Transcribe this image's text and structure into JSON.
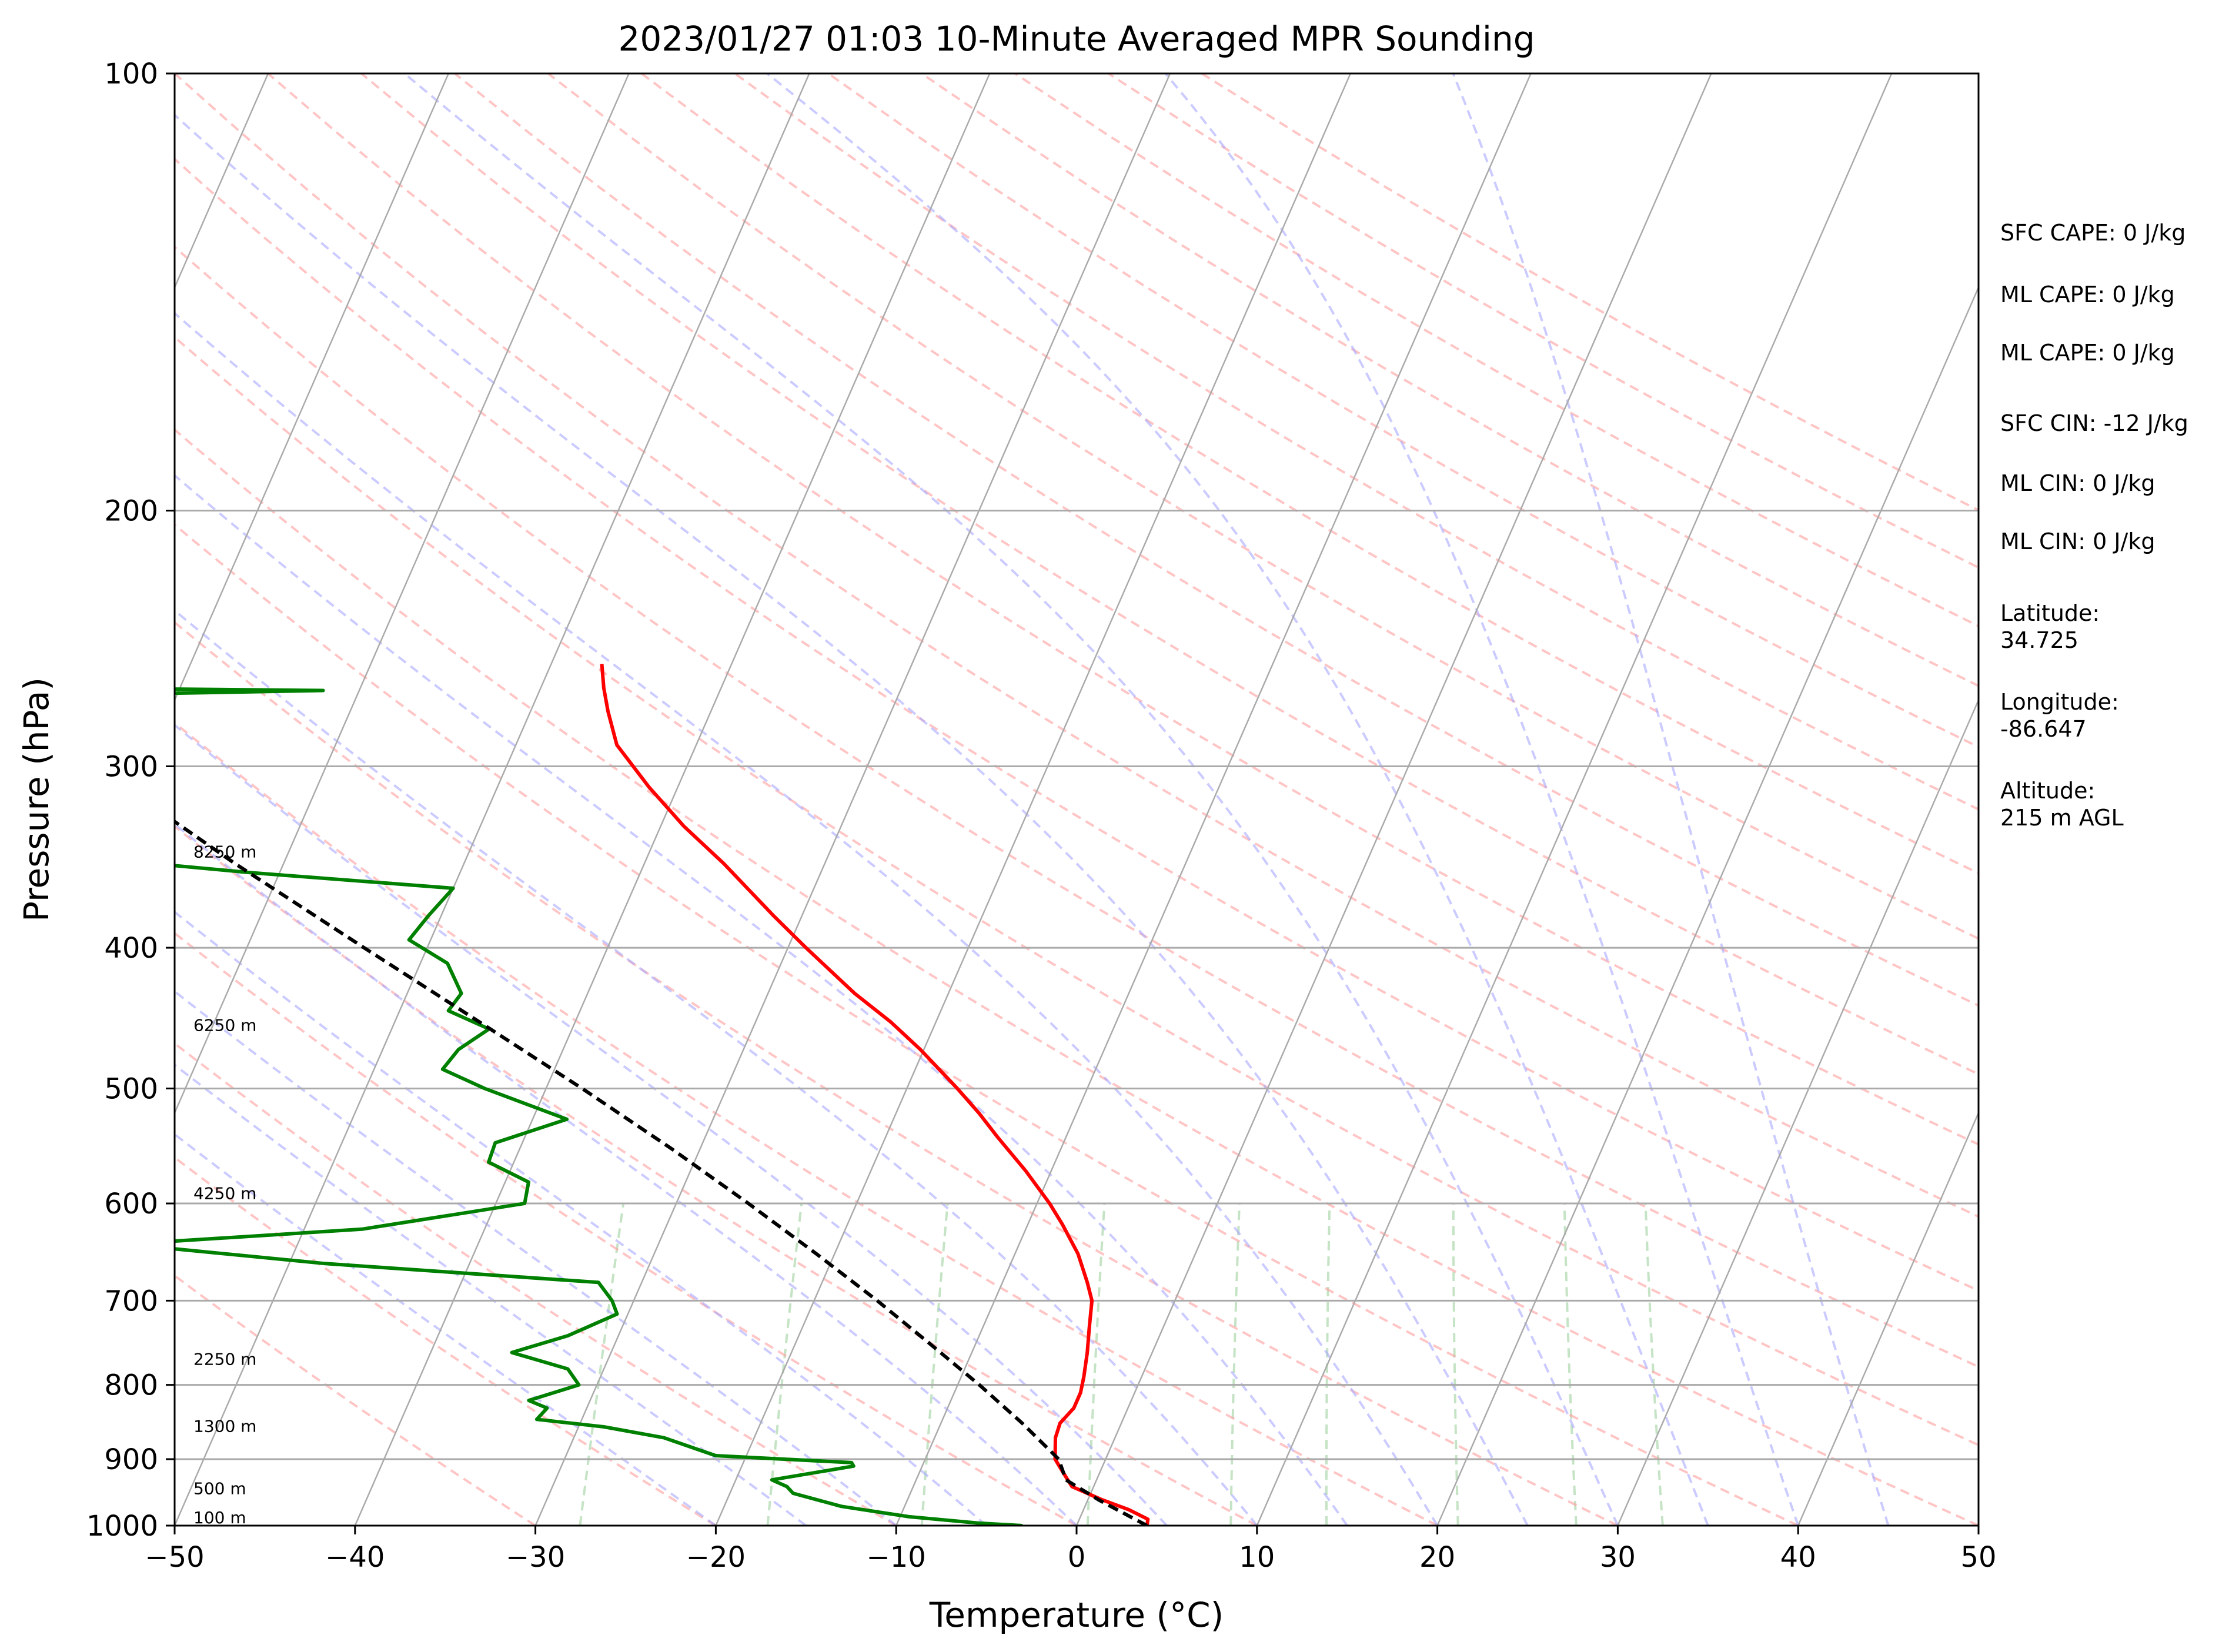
{
  "chart_data": {
    "type": "line",
    "subtype": "skew-t log-p",
    "title": "2023/01/27 01:03 10-Minute Averaged MPR Sounding",
    "xlabel": "Temperature (°C)",
    "ylabel": "Pressure (hPa)",
    "xlim": [
      -50,
      50
    ],
    "ylim": [
      1000,
      100
    ],
    "y_scale": "log",
    "x_ticks": [
      "−50",
      "−40",
      "−30",
      "−20",
      "−10",
      "0",
      "10",
      "20",
      "30",
      "40",
      "50"
    ],
    "y_ticks": [
      "100",
      "200",
      "300",
      "400",
      "500",
      "600",
      "700",
      "800",
      "900",
      "1000"
    ],
    "grid": true,
    "series": [
      {
        "kind": "temperature",
        "color": "#ff0000",
        "points": [
          [
            1000,
            3.9
          ],
          [
            990,
            3.8
          ],
          [
            975,
            2.5
          ],
          [
            960,
            0.8
          ],
          [
            940,
            -1.2
          ],
          [
            920,
            -2.0
          ],
          [
            900,
            -2.8
          ],
          [
            870,
            -3.3
          ],
          [
            850,
            -3.4
          ],
          [
            830,
            -3.0
          ],
          [
            810,
            -3.0
          ],
          [
            790,
            -3.2
          ],
          [
            760,
            -3.6
          ],
          [
            730,
            -4.1
          ],
          [
            700,
            -4.6
          ],
          [
            680,
            -5.3
          ],
          [
            650,
            -6.5
          ],
          [
            620,
            -8.1
          ],
          [
            600,
            -9.3
          ],
          [
            570,
            -11.4
          ],
          [
            540,
            -13.8
          ],
          [
            520,
            -15.4
          ],
          [
            500,
            -17.2
          ],
          [
            470,
            -20.2
          ],
          [
            450,
            -22.5
          ],
          [
            430,
            -25.2
          ],
          [
            400,
            -29.0
          ],
          [
            380,
            -31.6
          ],
          [
            350,
            -35.6
          ],
          [
            330,
            -38.7
          ],
          [
            310,
            -41.6
          ],
          [
            290,
            -44.4
          ],
          [
            275,
            -45.7
          ],
          [
            265,
            -46.5
          ],
          [
            255,
            -47.2
          ]
        ]
      },
      {
        "kind": "dewpoint",
        "color": "#008000",
        "points": [
          [
            1000,
            -3.0
          ],
          [
            996,
            -5.5
          ],
          [
            986,
            -9.5
          ],
          [
            970,
            -13.5
          ],
          [
            950,
            -16.5
          ],
          [
            940,
            -17.0
          ],
          [
            930,
            -18.0
          ],
          [
            910,
            -13.8
          ],
          [
            905,
            -14.0
          ],
          [
            895,
            -21.7
          ],
          [
            870,
            -25.0
          ],
          [
            855,
            -28.6
          ],
          [
            845,
            -32.5
          ],
          [
            830,
            -32.2
          ],
          [
            820,
            -33.4
          ],
          [
            800,
            -31.0
          ],
          [
            780,
            -32.0
          ],
          [
            760,
            -35.5
          ],
          [
            740,
            -32.8
          ],
          [
            715,
            -30.6
          ],
          [
            700,
            -31.2
          ],
          [
            680,
            -32.4
          ],
          [
            660,
            -48.0
          ],
          [
            640,
            -59.5
          ],
          [
            625,
            -46.8
          ],
          [
            600,
            -38.4
          ],
          [
            580,
            -38.7
          ],
          [
            562,
            -41.4
          ],
          [
            545,
            -41.5
          ],
          [
            525,
            -38.1
          ],
          [
            500,
            -43.4
          ],
          [
            485,
            -46.2
          ],
          [
            470,
            -45.8
          ],
          [
            455,
            -44.6
          ],
          [
            442,
            -47.3
          ],
          [
            430,
            -47.0
          ],
          [
            410,
            -48.5
          ],
          [
            395,
            -51.2
          ],
          [
            380,
            -50.7
          ],
          [
            364,
            -50.0
          ],
          [
            355,
            -61.7
          ],
          [
            345,
            -72.9
          ],
          [
            330,
            -68.8
          ],
          [
            320,
            -73.0
          ],
          [
            317,
            -81.0
          ],
          [
            318,
            -90.0
          ],
          [
            270,
            -90.0
          ],
          [
            266,
            -62.0
          ],
          [
            264,
            -90.0
          ]
        ]
      },
      {
        "kind": "parcel profile",
        "color": "#000000",
        "points": [
          [
            1000,
            3.9
          ],
          [
            960,
            0.6
          ],
          [
            930,
            -1.7
          ],
          [
            900,
            -2.6
          ],
          [
            850,
            -5.5
          ],
          [
            800,
            -8.8
          ],
          [
            750,
            -12.5
          ],
          [
            700,
            -16.5
          ],
          [
            650,
            -21.0
          ],
          [
            600,
            -26.0
          ],
          [
            550,
            -31.6
          ],
          [
            500,
            -38.0
          ],
          [
            450,
            -45.3
          ],
          [
            400,
            -53.5
          ],
          [
            350,
            -62.7
          ],
          [
            300,
            -72.8
          ],
          [
            270,
            -79.5
          ]
        ]
      }
    ],
    "height_labels": [
      "100 m",
      "500 m",
      "1300 m",
      "2250 m",
      "4250 m",
      "6250 m",
      "8250 m"
    ],
    "height_label_pressures": [
      1000,
      955,
      865,
      778,
      598,
      458,
      348
    ],
    "reference_lines": {
      "isotherm_color": "#aaaaaa",
      "dry_adiabat_color": "#ff9e9e",
      "moist_adiabat_color": "#a8a8ff",
      "mixing_ratio_color": "#9ed09e"
    },
    "annotations": [
      "SFC CAPE: 0 J/kg",
      "ML CAPE: 0 J/kg",
      "ML CAPE: 0 J/kg",
      "SFC CIN: -12 J/kg",
      "ML CIN: 0 J/kg",
      "ML CIN: 0 J/kg",
      "Latitude:\n34.725",
      "Longitude:\n-86.647",
      "Altitude:\n215 m AGL"
    ]
  }
}
